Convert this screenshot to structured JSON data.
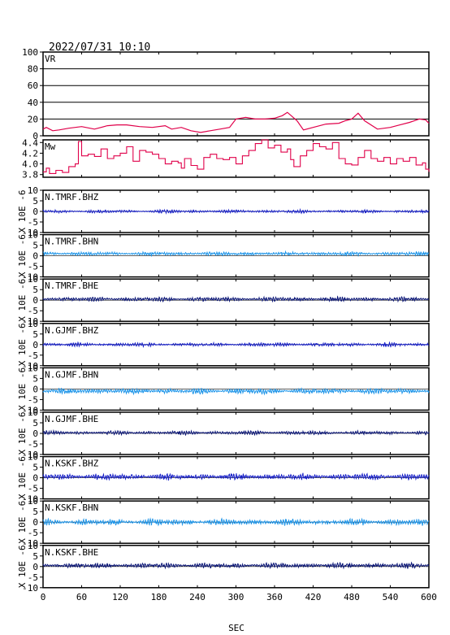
{
  "header": {
    "timestamp": "2022/07/31 10:10"
  },
  "chart_data": {
    "type": "line",
    "xlabel": "SEC",
    "xlim": [
      0,
      600
    ],
    "xticks": [
      "0",
      "60",
      "120",
      "180",
      "240",
      "300",
      "360",
      "420",
      "480",
      "540",
      "600"
    ],
    "vr": {
      "label": "VR",
      "color": "#e0004a",
      "ylim": [
        0,
        100
      ],
      "yticks": [
        "0",
        "20",
        "40",
        "60",
        "80",
        "100"
      ],
      "x": [
        0,
        5,
        15,
        25,
        40,
        60,
        80,
        100,
        115,
        130,
        150,
        170,
        190,
        200,
        215,
        230,
        245,
        260,
        275,
        290,
        300,
        315,
        330,
        345,
        360,
        372,
        380,
        395,
        405,
        420,
        440,
        460,
        470,
        480,
        490,
        500,
        520,
        540,
        555,
        570,
        585,
        595,
        600
      ],
      "y": [
        8,
        10,
        6,
        7,
        9,
        11,
        8,
        12,
        13,
        13,
        11,
        10,
        12,
        8,
        10,
        6,
        4,
        6,
        8,
        10,
        20,
        22,
        20,
        20,
        21,
        24,
        28,
        18,
        7,
        10,
        14,
        15,
        18,
        20,
        27,
        18,
        8,
        10,
        13,
        16,
        20,
        19,
        15
      ]
    },
    "mw": {
      "label": "Mw",
      "color": "#e0004a",
      "ylim": [
        3.75,
        4.45
      ],
      "yticks": [
        "3.8",
        "4.0",
        "4.2",
        "4.4"
      ],
      "x": [
        0,
        5,
        10,
        20,
        30,
        40,
        50,
        55,
        60,
        70,
        80,
        90,
        100,
        110,
        120,
        130,
        140,
        150,
        160,
        170,
        180,
        190,
        200,
        210,
        215,
        220,
        230,
        240,
        250,
        260,
        270,
        280,
        290,
        300,
        310,
        320,
        330,
        340,
        350,
        360,
        370,
        380,
        385,
        390,
        400,
        410,
        420,
        430,
        440,
        450,
        460,
        470,
        480,
        490,
        500,
        510,
        520,
        530,
        540,
        550,
        560,
        570,
        580,
        590,
        595,
        600
      ],
      "y": [
        3.85,
        3.92,
        3.82,
        3.88,
        3.84,
        3.95,
        4.0,
        4.42,
        4.15,
        4.18,
        4.14,
        4.28,
        4.1,
        4.15,
        4.2,
        4.32,
        4.05,
        4.25,
        4.22,
        4.18,
        4.1,
        4.0,
        4.05,
        4.02,
        3.92,
        4.1,
        3.97,
        3.9,
        4.12,
        4.18,
        4.1,
        4.08,
        4.12,
        4.0,
        4.15,
        4.25,
        4.38,
        4.45,
        4.3,
        4.35,
        4.22,
        4.28,
        4.08,
        3.95,
        4.15,
        4.25,
        4.38,
        4.32,
        4.28,
        4.4,
        4.1,
        4.0,
        3.98,
        4.12,
        4.25,
        4.1,
        4.05,
        4.12,
        4.0,
        4.1,
        4.05,
        4.12,
        3.98,
        4.02,
        3.9,
        3.85
      ]
    },
    "waveforms": {
      "ylim": [
        -10,
        10
      ],
      "yticks": [
        "-10",
        "-5",
        "0",
        "5",
        "10"
      ],
      "ylabel": "X 10E -6",
      "series": [
        {
          "name": "N.TMRF.BHZ",
          "color": "#1a22c8",
          "amplitude": 0.5,
          "offset": 0.0
        },
        {
          "name": "N.TMRF.BHN",
          "color": "#2196e8",
          "amplitude": 0.6,
          "offset": 1.0
        },
        {
          "name": "N.TMRF.BHE",
          "color": "#0d1878",
          "amplitude": 0.7,
          "offset": 0.5
        },
        {
          "name": "N.GJMF.BHZ",
          "color": "#1a22c8",
          "amplitude": 0.6,
          "offset": 0.0
        },
        {
          "name": "N.GJMF.BHN",
          "color": "#2196e8",
          "amplitude": 0.9,
          "offset": -1.0
        },
        {
          "name": "N.GJMF.BHE",
          "color": "#0d1878",
          "amplitude": 0.6,
          "offset": 0.3
        },
        {
          "name": "N.KSKF.BHZ",
          "color": "#1a22c8",
          "amplitude": 1.0,
          "offset": 0.5
        },
        {
          "name": "N.KSKF.BHN",
          "color": "#2196e8",
          "amplitude": 1.0,
          "offset": 0.0
        },
        {
          "name": "N.KSKF.BHE",
          "color": "#0d1878",
          "amplitude": 0.8,
          "offset": 0.5
        }
      ]
    }
  }
}
